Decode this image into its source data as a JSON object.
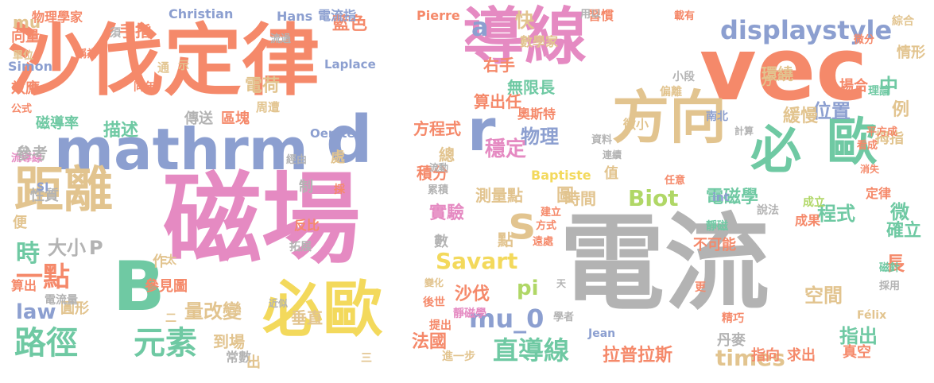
{
  "palette": {
    "orange": "#f5896a",
    "blue": "#8c9fd0",
    "green": "#6fc9a3",
    "pink": "#e58ac2",
    "yellow": "#f3d95c",
    "tan": "#e2c48f",
    "gray": "#b3b3b3",
    "lime": "#b0d766"
  },
  "words": [
    {
      "text": "沙伐定律",
      "color": "orange"
    },
    {
      "text": "導線",
      "color": "pink"
    },
    {
      "text": "vec",
      "color": "orange"
    },
    {
      "text": "mathrm",
      "color": "blue"
    },
    {
      "text": "d",
      "color": "blue"
    },
    {
      "text": "r",
      "color": "blue"
    },
    {
      "text": "方向",
      "color": "tan"
    },
    {
      "text": "必",
      "color": "green"
    },
    {
      "text": "歐",
      "color": "green"
    },
    {
      "text": "磁場",
      "color": "pink"
    },
    {
      "text": "電流",
      "color": "gray"
    },
    {
      "text": "距離",
      "color": "tan"
    },
    {
      "text": "B",
      "color": "green"
    },
    {
      "text": "必歐",
      "color": "yellow"
    },
    {
      "text": "s",
      "color": "tan"
    },
    {
      "text": "displaystyle",
      "color": "blue"
    },
    {
      "text": "Savart",
      "color": "yellow"
    },
    {
      "text": "Biot",
      "color": "lime"
    },
    {
      "text": "路徑",
      "color": "green"
    },
    {
      "text": "元素",
      "color": "green"
    },
    {
      "text": "直導線",
      "color": "green"
    },
    {
      "text": "電荷",
      "color": "tan"
    },
    {
      "text": "物理",
      "color": "blue"
    },
    {
      "text": "穩定",
      "color": "pink"
    },
    {
      "text": "積分",
      "color": "orange"
    },
    {
      "text": "方程式",
      "color": "orange"
    },
    {
      "text": "實驗",
      "color": "pink"
    },
    {
      "text": "位置",
      "color": "blue"
    },
    {
      "text": "緩慢",
      "color": "tan"
    },
    {
      "text": "環繞",
      "color": "tan"
    },
    {
      "text": "一點",
      "color": "orange"
    },
    {
      "text": "時",
      "color": "green"
    },
    {
      "text": "大小",
      "color": "gray"
    },
    {
      "text": "P",
      "color": "gray"
    },
    {
      "text": "mu_0",
      "color": "blue"
    },
    {
      "text": "pi",
      "color": "lime"
    },
    {
      "text": "沙伐",
      "color": "orange"
    },
    {
      "text": "法國",
      "color": "orange"
    },
    {
      "text": "量改變",
      "color": "tan"
    },
    {
      "text": "空間",
      "color": "tan"
    },
    {
      "text": "指出",
      "color": "green"
    },
    {
      "text": "times",
      "color": "tan"
    },
    {
      "text": "拉普拉斯",
      "color": "orange"
    },
    {
      "text": "law",
      "color": "blue"
    },
    {
      "text": "a",
      "color": "blue"
    },
    {
      "text": "快",
      "color": "tan"
    },
    {
      "text": "右手",
      "color": "orange"
    },
    {
      "text": "無限長",
      "color": "green"
    },
    {
      "text": "算出任",
      "color": "orange"
    },
    {
      "text": "描述",
      "color": "green"
    },
    {
      "text": "程式",
      "color": "green"
    },
    {
      "text": "確立",
      "color": "green"
    },
    {
      "text": "時間",
      "color": "tan"
    },
    {
      "text": "電磁學",
      "color": "green"
    },
    {
      "text": "中",
      "color": "green"
    },
    {
      "text": "例",
      "color": "tan"
    },
    {
      "text": "拇指",
      "color": "tan"
    },
    {
      "text": "情形",
      "color": "tan"
    },
    {
      "text": "場合",
      "color": "orange"
    },
    {
      "text": "藍色",
      "color": "orange"
    },
    {
      "text": "手指",
      "color": "orange"
    },
    {
      "text": "mu",
      "color": "tan"
    },
    {
      "text": "物理學家",
      "color": "orange"
    },
    {
      "text": "Christian",
      "color": "blue"
    },
    {
      "text": "Hans",
      "color": "blue"
    },
    {
      "text": "電流指",
      "color": "blue"
    },
    {
      "text": "Pierre",
      "color": "orange"
    },
    {
      "text": "習慣",
      "color": "orange"
    },
    {
      "text": "綜合",
      "color": "tan"
    },
    {
      "text": "向量",
      "color": "orange"
    },
    {
      "text": "Simon",
      "color": "blue"
    },
    {
      "text": "效應",
      "color": "orange"
    },
    {
      "text": "磁導率",
      "color": "green"
    },
    {
      "text": "區塊",
      "color": "orange"
    },
    {
      "text": "傳送",
      "color": "gray"
    },
    {
      "text": "Laplace",
      "color": "blue"
    },
    {
      "text": "Oersted",
      "color": "blue"
    },
    {
      "text": "數學家",
      "color": "tan"
    },
    {
      "text": "奧斯特",
      "color": "orange"
    },
    {
      "text": "測量點",
      "color": "tan"
    },
    {
      "text": "圖",
      "color": "tan"
    },
    {
      "text": "點",
      "color": "tan"
    },
    {
      "text": "總",
      "color": "tan"
    },
    {
      "text": "垂直",
      "color": "tan"
    },
    {
      "text": "到場",
      "color": "tan"
    },
    {
      "text": "參見圖",
      "color": "orange"
    },
    {
      "text": "圓形",
      "color": "tan"
    },
    {
      "text": "電流量",
      "color": "gray"
    },
    {
      "text": "算出",
      "color": "orange"
    },
    {
      "text": "作",
      "color": "tan"
    },
    {
      "text": "反比",
      "color": "orange"
    },
    {
      "text": "拓展",
      "color": "gray"
    },
    {
      "text": "後世",
      "color": "orange"
    },
    {
      "text": "提出",
      "color": "orange"
    },
    {
      "text": "靜磁學",
      "color": "pink"
    },
    {
      "text": "進一步",
      "color": "tan"
    },
    {
      "text": "常數",
      "color": "gray"
    },
    {
      "text": "出",
      "color": "tan"
    },
    {
      "text": "丹麥",
      "color": "gray"
    },
    {
      "text": "求出",
      "color": "orange"
    },
    {
      "text": "指向",
      "color": "orange"
    },
    {
      "text": "真空",
      "color": "orange"
    },
    {
      "text": "不可能",
      "color": "orange"
    },
    {
      "text": "成果",
      "color": "orange"
    },
    {
      "text": "int",
      "color": "blue"
    },
    {
      "text": "定律",
      "color": "orange"
    },
    {
      "text": "Félix",
      "color": "tan"
    },
    {
      "text": "Jean",
      "color": "blue"
    },
    {
      "text": "Baptiste",
      "color": "yellow"
    },
    {
      "text": "值",
      "color": "tan"
    },
    {
      "text": "長",
      "color": "orange"
    },
    {
      "text": "微",
      "color": "green"
    },
    {
      "text": "微小",
      "color": "tan"
    },
    {
      "text": "小段",
      "color": "gray"
    },
    {
      "text": "理論",
      "color": "green"
    },
    {
      "text": "偏離",
      "color": "tan"
    },
    {
      "text": "南北",
      "color": "blue"
    },
    {
      "text": "計算",
      "color": "gray"
    },
    {
      "text": "平方成",
      "color": "orange"
    },
    {
      "text": "看成",
      "color": "orange"
    },
    {
      "text": "消失",
      "color": "orange"
    },
    {
      "text": "說法",
      "color": "gray"
    },
    {
      "text": "成立",
      "color": "lime"
    },
    {
      "text": "靜磁",
      "color": "green"
    },
    {
      "text": "磁針",
      "color": "green"
    },
    {
      "text": "採用",
      "color": "gray"
    },
    {
      "text": "精巧",
      "color": "orange"
    },
    {
      "text": "周遭",
      "color": "tan"
    },
    {
      "text": "同年",
      "color": "orange"
    },
    {
      "text": "稱為",
      "color": "orange"
    },
    {
      "text": "單位",
      "color": "tan"
    },
    {
      "text": "公式",
      "color": "orange"
    },
    {
      "text": "流導線",
      "color": "pink"
    },
    {
      "text": "經由",
      "color": "gray"
    },
    {
      "text": "流動",
      "color": "gray"
    },
    {
      "text": "資料",
      "color": "gray"
    },
    {
      "text": "連續",
      "color": "gray"
    },
    {
      "text": "建立",
      "color": "orange"
    },
    {
      "text": "方式",
      "color": "orange"
    },
    {
      "text": "遠處",
      "color": "orange"
    },
    {
      "text": "學者",
      "color": "gray"
    },
    {
      "text": "近似",
      "color": "gray"
    },
    {
      "text": "變化",
      "color": "tan"
    },
    {
      "text": "累積",
      "color": "gray"
    },
    {
      "text": "任意",
      "color": "orange"
    },
    {
      "text": "載有",
      "color": "orange"
    },
    {
      "text": "微分",
      "color": "orange"
    },
    {
      "text": "流過",
      "color": "gray"
    },
    {
      "text": "用以",
      "color": "gray"
    },
    {
      "text": "參考",
      "color": "gray"
    },
    {
      "text": "性質",
      "color": "gray"
    },
    {
      "text": "SI",
      "color": "blue"
    },
    {
      "text": "便",
      "color": "tan"
    },
    {
      "text": "處",
      "color": "tan"
    },
    {
      "text": "通",
      "color": "tan"
    },
    {
      "text": "示",
      "color": "tan"
    },
    {
      "text": "方",
      "color": "tan"
    },
    {
      "text": "須",
      "color": "gray"
    },
    {
      "text": "制",
      "color": "gray"
    },
    {
      "text": "數",
      "color": "gray"
    },
    {
      "text": "採",
      "color": "orange"
    },
    {
      "text": "三",
      "color": "tan"
    },
    {
      "text": "二",
      "color": "tan"
    },
    {
      "text": "太",
      "color": "tan"
    },
    {
      "text": "天",
      "color": "gray"
    },
    {
      "text": "更",
      "color": "orange"
    },
    {
      "text": "裏",
      "color": "tan"
    },
    {
      "text": "載",
      "color": "orange"
    },
    {
      "text": "定",
      "color": "orange"
    }
  ]
}
